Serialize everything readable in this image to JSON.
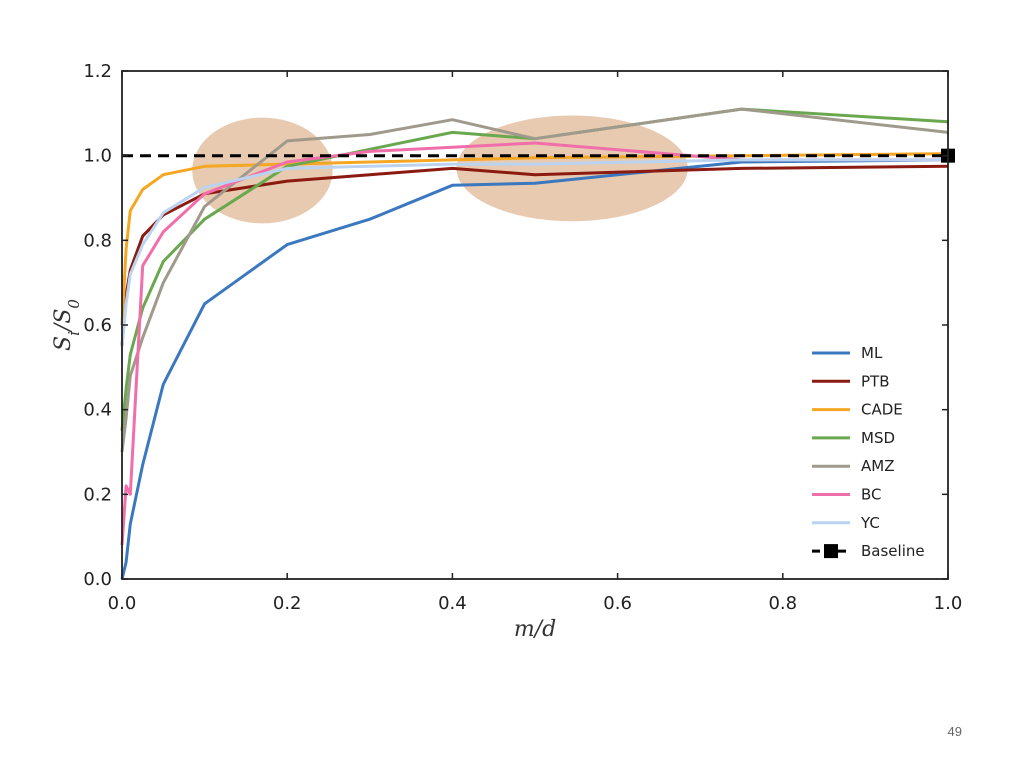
{
  "page_number": "49",
  "chart_data": {
    "type": "line",
    "xlabel": "m/d",
    "ylabel": "S_i/S_0",
    "xlim": [
      0.0,
      1.0
    ],
    "ylim": [
      0.0,
      1.2
    ],
    "xticks": [
      "0.0",
      "0.2",
      "0.4",
      "0.6",
      "0.8",
      "1.0"
    ],
    "yticks": [
      "0.0",
      "0.2",
      "0.4",
      "0.6",
      "0.8",
      "1.0",
      "1.2"
    ],
    "grid": false,
    "legend_position": "lower-right",
    "highlights": [
      {
        "cx": 0.17,
        "cy": 0.965,
        "rx": 0.085,
        "ry": 0.125,
        "color": "#e0b896"
      },
      {
        "cx": 0.545,
        "cy": 0.97,
        "rx": 0.14,
        "ry": 0.125,
        "color": "#e0b896"
      }
    ],
    "series": [
      {
        "name": "ML",
        "color": "#3b78bf",
        "x": [
          0,
          0.005,
          0.01,
          0.025,
          0.05,
          0.1,
          0.2,
          0.3,
          0.4,
          0.5,
          0.75,
          1.0
        ],
        "y": [
          0.0,
          0.04,
          0.13,
          0.27,
          0.46,
          0.65,
          0.79,
          0.85,
          0.93,
          0.935,
          0.985,
          0.99
        ]
      },
      {
        "name": "PTB",
        "color": "#8b1a10",
        "x": [
          0,
          0.005,
          0.01,
          0.025,
          0.05,
          0.1,
          0.2,
          0.3,
          0.4,
          0.5,
          0.75,
          1.0
        ],
        "y": [
          0.55,
          0.67,
          0.73,
          0.81,
          0.86,
          0.91,
          0.94,
          0.955,
          0.97,
          0.955,
          0.97,
          0.975
        ]
      },
      {
        "name": "CADE",
        "color": "#f5a623",
        "x": [
          0,
          0.005,
          0.01,
          0.025,
          0.05,
          0.1,
          0.2,
          0.3,
          0.4,
          0.5,
          0.75,
          1.0
        ],
        "y": [
          0.6,
          0.78,
          0.87,
          0.92,
          0.955,
          0.975,
          0.98,
          0.985,
          0.99,
          0.995,
          1.0,
          1.005
        ]
      },
      {
        "name": "MSD",
        "color": "#6aa84f",
        "x": [
          0,
          0.005,
          0.01,
          0.025,
          0.05,
          0.1,
          0.2,
          0.3,
          0.4,
          0.5,
          0.75,
          1.0
        ],
        "y": [
          0.35,
          0.45,
          0.53,
          0.64,
          0.75,
          0.85,
          0.975,
          1.015,
          1.055,
          1.04,
          1.11,
          1.08
        ]
      },
      {
        "name": "AMZ",
        "color": "#a09a8c",
        "x": [
          0,
          0.005,
          0.01,
          0.025,
          0.05,
          0.1,
          0.2,
          0.3,
          0.4,
          0.5,
          0.75,
          1.0
        ],
        "y": [
          0.3,
          0.38,
          0.48,
          0.57,
          0.7,
          0.88,
          1.035,
          1.05,
          1.085,
          1.04,
          1.11,
          1.055
        ]
      },
      {
        "name": "BC",
        "color": "#f06eaa",
        "x": [
          0,
          0.005,
          0.01,
          0.025,
          0.05,
          0.1,
          0.2,
          0.3,
          0.4,
          0.5,
          0.75,
          1.0
        ],
        "y": [
          0.08,
          0.22,
          0.2,
          0.74,
          0.82,
          0.91,
          0.985,
          1.01,
          1.02,
          1.03,
          0.99,
          0.99
        ]
      },
      {
        "name": "YC",
        "color": "#b9d3f0",
        "x": [
          0,
          0.005,
          0.01,
          0.025,
          0.05,
          0.1,
          0.2,
          0.3,
          0.4,
          0.5,
          0.75,
          1.0
        ],
        "y": [
          0.55,
          0.65,
          0.72,
          0.79,
          0.865,
          0.925,
          0.97,
          0.975,
          0.98,
          0.98,
          0.99,
          0.99
        ]
      },
      {
        "name": "Baseline",
        "color": "#000000",
        "dashed": true,
        "x": [
          0.0,
          1.0
        ],
        "y": [
          1.0,
          1.0
        ]
      }
    ]
  }
}
